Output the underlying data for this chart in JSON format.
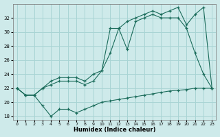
{
  "background_color": "#ceeaea",
  "grid_color": "#a8d4d4",
  "line_color": "#1a6b5a",
  "xlabel": "Humidex (Indice chaleur)",
  "x_ticks": [
    0,
    1,
    2,
    3,
    4,
    5,
    6,
    7,
    8,
    9,
    10,
    11,
    12,
    13,
    14,
    15,
    16,
    17,
    18,
    19,
    20,
    21,
    22,
    23
  ],
  "ylim": [
    17.5,
    34
  ],
  "y_ticks": [
    18,
    20,
    22,
    24,
    26,
    28,
    30,
    32
  ],
  "series1_x": [
    0,
    1,
    2,
    3,
    4,
    5,
    6,
    7,
    8,
    9,
    10,
    11,
    12,
    13,
    14,
    15,
    16,
    17,
    18,
    19,
    20,
    21,
    22,
    23
  ],
  "series1_y": [
    22,
    21,
    21,
    19.5,
    18,
    19,
    19,
    18.5,
    19,
    19.5,
    20,
    20.2,
    20.4,
    20.6,
    20.8,
    21,
    21.2,
    21.4,
    21.6,
    21.7,
    21.8,
    22,
    22,
    22
  ],
  "series2_x": [
    0,
    1,
    2,
    3,
    4,
    5,
    6,
    7,
    8,
    9,
    10,
    11,
    12,
    13,
    14,
    15,
    16,
    17,
    18,
    19,
    20,
    21,
    22,
    23
  ],
  "series2_y": [
    22,
    21,
    21,
    22,
    22.5,
    23,
    23,
    23,
    22.5,
    23,
    24.5,
    30.5,
    30.5,
    27.5,
    31.5,
    32,
    32.5,
    32,
    32,
    32,
    30.5,
    27,
    24,
    22
  ],
  "series3_x": [
    0,
    1,
    2,
    3,
    4,
    5,
    6,
    7,
    8,
    9,
    10,
    11,
    12,
    13,
    14,
    15,
    16,
    17,
    18,
    19,
    20,
    21,
    22,
    23
  ],
  "series3_y": [
    22,
    21,
    21,
    22,
    23,
    23.5,
    23.5,
    23.5,
    23,
    24,
    24.5,
    27,
    30.5,
    31.5,
    32,
    32.5,
    33,
    32.5,
    33,
    33.5,
    31,
    32.5,
    33.5,
    22
  ]
}
